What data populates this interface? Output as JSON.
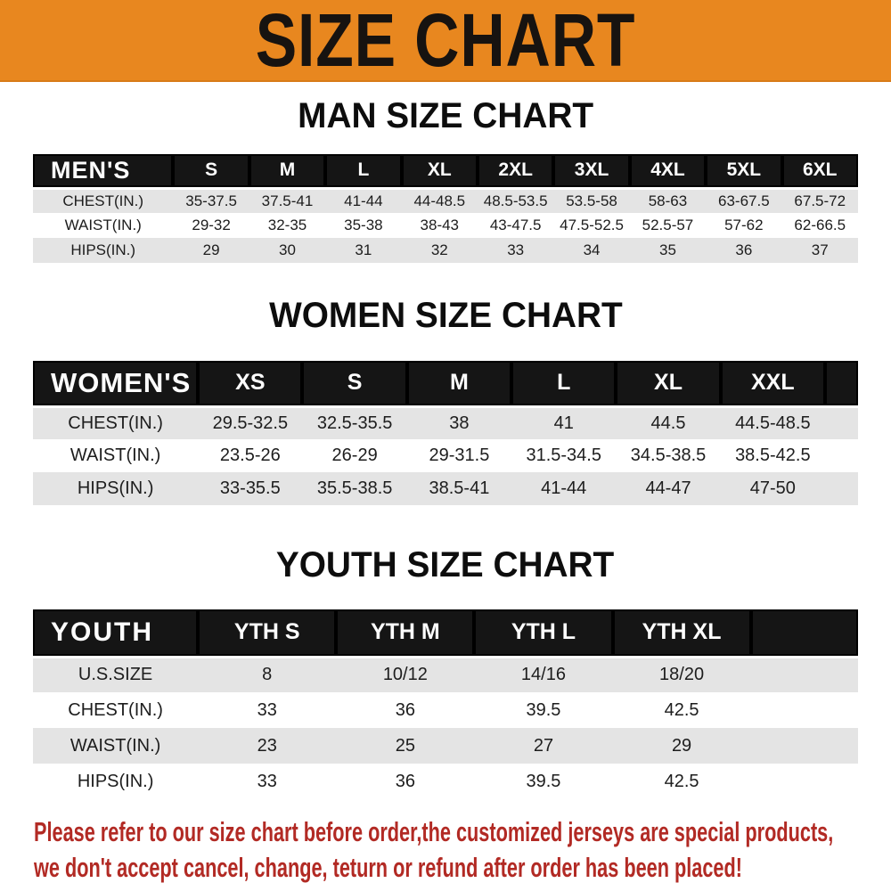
{
  "banner": {
    "title": "SIZE CHART"
  },
  "headings": {
    "man": "MAN SIZE CHART",
    "women": "WOMEN SIZE CHART",
    "youth": "YOUTH SIZE CHART"
  },
  "tables": [
    {
      "name": "mens",
      "heading": "MAN SIZE CHART",
      "label": "MEN'S",
      "sizes": [
        "S",
        "M",
        "L",
        "XL",
        "2XL",
        "3XL",
        "4XL",
        "5XL",
        "6XL"
      ],
      "rows": [
        {
          "label": "CHEST(IN.)",
          "values": [
            "35-37.5",
            "37.5-41",
            "41-44",
            "44-48.5",
            "48.5-53.5",
            "53.5-58",
            "58-63",
            "63-67.5",
            "67.5-72"
          ]
        },
        {
          "label": "WAIST(IN.)",
          "values": [
            "29-32",
            "32-35",
            "35-38",
            "38-43",
            "43-47.5",
            "47.5-52.5",
            "52.5-57",
            "57-62",
            "62-66.5"
          ]
        },
        {
          "label": "HIPS(IN.)",
          "values": [
            "29",
            "30",
            "31",
            "32",
            "33",
            "34",
            "35",
            "36",
            "37"
          ]
        }
      ]
    },
    {
      "name": "womens",
      "heading": "WOMEN SIZE CHART",
      "label": "WOMEN'S",
      "sizes": [
        "XS",
        "S",
        "M",
        "L",
        "XL",
        "XXL"
      ],
      "rows": [
        {
          "label": "CHEST(IN.)",
          "values": [
            "29.5-32.5",
            "32.5-35.5",
            "38",
            "41",
            "44.5",
            "44.5-48.5"
          ]
        },
        {
          "label": "WAIST(IN.)",
          "values": [
            "23.5-26",
            "26-29",
            "29-31.5",
            "31.5-34.5",
            "34.5-38.5",
            "38.5-42.5"
          ]
        },
        {
          "label": "HIPS(IN.)",
          "values": [
            "33-35.5",
            "35.5-38.5",
            "38.5-41",
            "41-44",
            "44-47",
            "47-50"
          ]
        }
      ]
    },
    {
      "name": "youth",
      "heading": "YOUTH SIZE CHART",
      "label": "YOUTH",
      "sizes": [
        "YTH S",
        "YTH M",
        "YTH L",
        "YTH XL"
      ],
      "rows": [
        {
          "label": "U.S.SIZE",
          "values": [
            "8",
            "10/12",
            "14/16",
            "18/20"
          ]
        },
        {
          "label": "CHEST(IN.)",
          "values": [
            "33",
            "36",
            "39.5",
            "42.5"
          ]
        },
        {
          "label": "WAIST(IN.)",
          "values": [
            "23",
            "25",
            "27",
            "29"
          ]
        },
        {
          "label": "HIPS(IN.)",
          "values": [
            "33",
            "36",
            "39.5",
            "42.5"
          ]
        }
      ]
    }
  ],
  "footer": {
    "line1": "Please refer to our size chart before order,the customized jerseys are special products,",
    "line2": "we don't accept cancel, change, teturn or refund after order has been placed!"
  },
  "colors": {
    "banner_bg": "#E8871F",
    "header_bar": "#151515",
    "row_stripe": "#E4E4E4",
    "disclaimer_red": "#B22A24"
  }
}
